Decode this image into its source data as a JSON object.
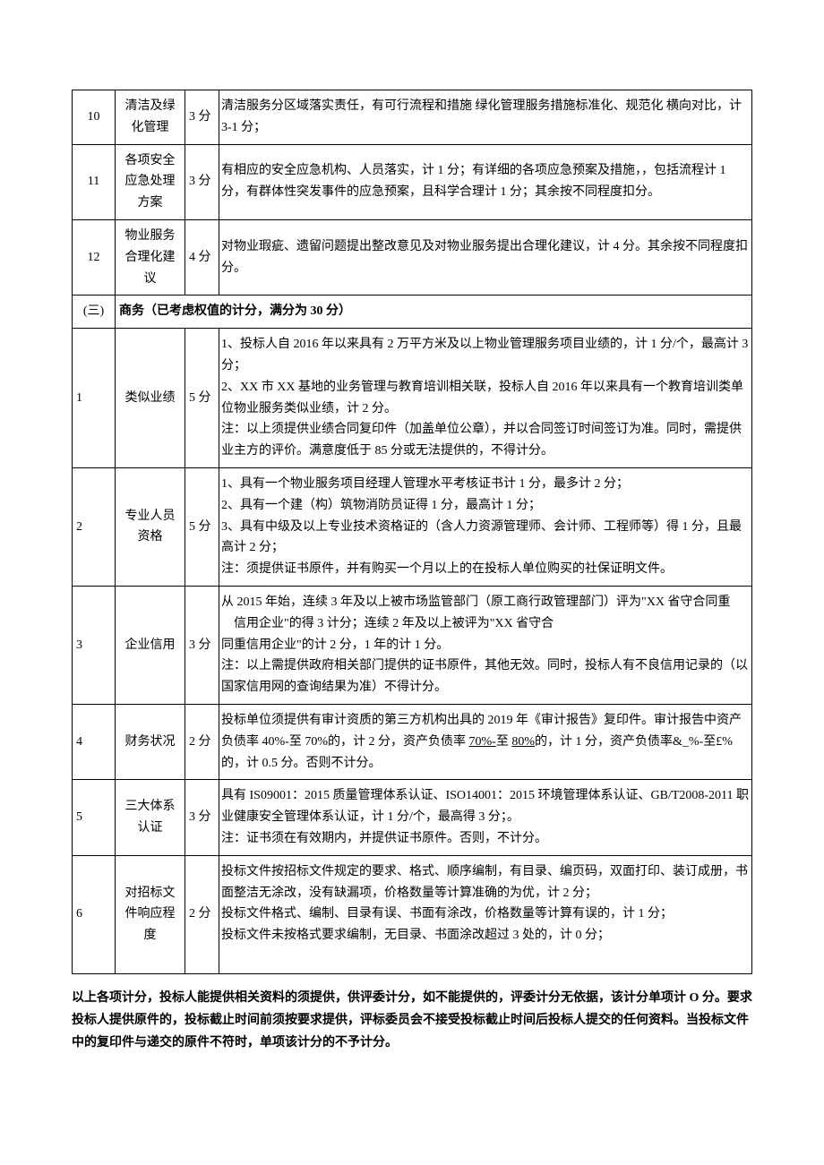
{
  "rows_a": [
    {
      "idx": "10",
      "name": "清洁及绿化管理",
      "score": "3 分",
      "desc": "清洁服务分区域落实责任，有可行流程和措施 绿化管理服务措施标准化、规范化 横向对比，计 3-1 分；"
    },
    {
      "idx": "11",
      "name": "各项安全应急处理方案",
      "score": "3 分",
      "desc": "有相应的安全应急机构、人员落实，计 1 分；有详细的各项应急预案及措施，，包括流程计 1 分，有群体性突发事件的应急预案，且科学合理计 1 分；其余按不同程度扣分。"
    },
    {
      "idx": "12",
      "name": "物业服务合理化建议",
      "score": "4 分",
      "desc": "对物业瑕疵、遗留问题提出整改意见及对物业服务提出合理化建议，计 4 分。其余按不同程度扣分。"
    }
  ],
  "section": {
    "idx": "(三)",
    "title": "商务（已考虑权值的计分，满分为 30 分）"
  },
  "rows_b": [
    {
      "idx": "1",
      "name": "类似业绩",
      "score": "5 分",
      "desc": "1、投标人自 2016 年以来具有 2 万平方米及以上物业管理服务项目业绩的，计 1 分/个，最高计 3 分；\n2、XX 市 XX 基地的业务管理与教育培训相关联，投标人自 2016 年以来具有一个教育培训类单位物业服务类似业绩，计 2 分。\n注：以上须提供业绩合同复印件（加盖单位公章），并以合同签订时间签订为准。同时，需提供业主方的评价。满意度低于 85 分或无法提供的，不得计分。"
    },
    {
      "idx": "2",
      "name": "专业人员资格",
      "score": "5 分",
      "desc": "1、具有一个物业服务项目经理人管理水平考核证书计 1 分，最多计 2 分；\n2、具有一个建（构）筑物消防员证得 1 分，最高计 1 分；\n3、具有中级及以上专业技术资格证的（含人力资源管理师、会计师、工程师等）得 1 分，且最高计 2 分；\n注：须提供证书原件，并有购买一个月以上的在投标人单位购买的社保证明文件。"
    },
    {
      "idx": "3",
      "name": "企业信用",
      "score": "3 分",
      "desc": "从 2015 年始，连续 3 年及以上被市场监管部门（原工商行政管理部门）评为\"XX 省守合同重\n　信用企业\"的得 3 计分；连续 2 年及以上被评为\"XX 省守合\n同重信用企业\"的计 2 分，1 年的计 1 分。\n注：以上需提供政府相关部门提供的证书原件，其他无效。同时，投标人有不良信用记录的（以国家信用网的查询结果为准）不得计分。"
    },
    {
      "idx": "4",
      "name": "财务状况",
      "score": "2 分",
      "desc_html": "投标单位须提供有审计资质的第三方机构出具的 2019 年《审计报告》复印件。审计报告中资产负债率 40%-至 70%的，计 2 分，资产负债率 <u>70%-</u>至 <u>80%</u>的，计 1 分，资产负债率&_%-至£%的，计 0.5 分。否则不计分。"
    },
    {
      "idx": "5",
      "name": "三大体系认证",
      "score": "3 分",
      "desc": "具有 IS09001：2015 质量管理体系认证、ISO14001：2015 环境管理体系认证、GB/T2008-2011 职业健康安全管理体系认证，计 1 分/个，最高得 3 分；。\n注：证书须在有效期内，并提供证书原件。否则，不计分。"
    },
    {
      "idx": "6",
      "name": "对招标文件响应程度",
      "score": "2 分",
      "desc": "投标文件按招标文件规定的要求、格式、顺序编制，有目录、编页码，双面打印、装订成册，书面整洁无涂改，没有缺漏项，价格数量等计算准确的为优，计 2 分；\n投标文件格式、编制、目录有误、书面有涂改，价格数量等计算有误的，计 1 分；\n投标文件未按格式要求编制，无目录、书面涂改超过 3 处的，计 0 分；\n\n"
    }
  ],
  "footer": "以上各项计分，投标人能提供相关资料的须提供，供评委计分，如不能提供的，评委计分无依据，该计分单项计 O 分。要求投标人提供原件的，投标截止时间前须按要求提供，评标委员会不接受投标截止时间后投标人提交的任何资料。当投标文件中的复印件与递交的原件不符时，单项该计分的不予计分。"
}
